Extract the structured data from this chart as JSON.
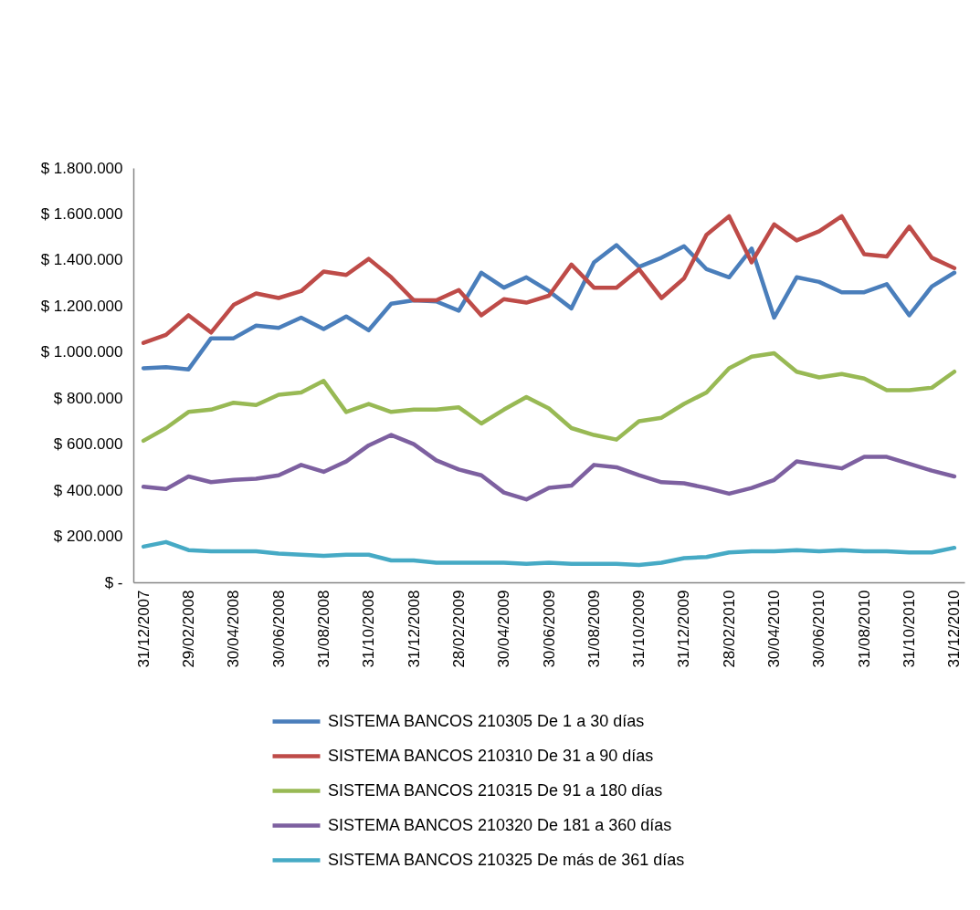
{
  "chart_data": {
    "type": "line",
    "categories": [
      "31/12/2007",
      null,
      "29/02/2008",
      null,
      "30/04/2008",
      null,
      "30/06/2008",
      null,
      "31/08/2008",
      null,
      "31/10/2008",
      null,
      "31/12/2008",
      null,
      "28/02/2009",
      null,
      "30/04/2009",
      null,
      "30/06/2009",
      null,
      "31/08/2009",
      null,
      "31/10/2009",
      null,
      "31/12/2009",
      null,
      "28/02/2010",
      null,
      "30/04/2010",
      null,
      "30/06/2010",
      null,
      "31/08/2010",
      null,
      "31/10/2010",
      null,
      "31/12/2010"
    ],
    "series": [
      {
        "name": "SISTEMA BANCOS 210305 De 1 a 30 días",
        "color": "#4a7ebb",
        "values": [
          930000,
          935000,
          925000,
          1060000,
          1060000,
          1115000,
          1105000,
          1150000,
          1100000,
          1155000,
          1095000,
          1210000,
          1225000,
          1220000,
          1180000,
          1345000,
          1280000,
          1325000,
          1265000,
          1190000,
          1390000,
          1465000,
          1370000,
          1410000,
          1460000,
          1360000,
          1325000,
          1450000,
          1150000,
          1325000,
          1305000,
          1260000,
          1260000,
          1295000,
          1160000,
          1285000,
          1345000
        ]
      },
      {
        "name": "SISTEMA BANCOS 210310 De 31 a 90 días",
        "color": "#be4b48",
        "values": [
          1040000,
          1075000,
          1160000,
          1085000,
          1205000,
          1255000,
          1235000,
          1265000,
          1350000,
          1335000,
          1405000,
          1325000,
          1225000,
          1225000,
          1270000,
          1160000,
          1230000,
          1215000,
          1245000,
          1380000,
          1280000,
          1280000,
          1360000,
          1235000,
          1320000,
          1510000,
          1590000,
          1390000,
          1555000,
          1485000,
          1525000,
          1590000,
          1425000,
          1415000,
          1545000,
          1410000,
          1365000
        ]
      },
      {
        "name": "SISTEMA BANCOS 210315 De 91 a 180 días",
        "color": "#98b954",
        "values": [
          615000,
          670000,
          740000,
          750000,
          780000,
          770000,
          815000,
          825000,
          875000,
          740000,
          775000,
          740000,
          750000,
          750000,
          760000,
          690000,
          750000,
          805000,
          755000,
          670000,
          640000,
          620000,
          700000,
          715000,
          775000,
          825000,
          930000,
          980000,
          995000,
          915000,
          890000,
          905000,
          885000,
          835000,
          835000,
          845000,
          915000
        ]
      },
      {
        "name": "SISTEMA BANCOS 210320 De 181 a 360 días",
        "color": "#7d60a0",
        "values": [
          415000,
          405000,
          460000,
          435000,
          445000,
          450000,
          465000,
          510000,
          480000,
          525000,
          595000,
          640000,
          600000,
          530000,
          490000,
          465000,
          390000,
          360000,
          410000,
          420000,
          510000,
          500000,
          465000,
          435000,
          430000,
          410000,
          385000,
          410000,
          445000,
          525000,
          510000,
          495000,
          545000,
          545000,
          515000,
          485000,
          460000
        ]
      },
      {
        "name": "SISTEMA BANCOS 210325 De más de 361 días",
        "color": "#46aac5",
        "values": [
          155000,
          175000,
          140000,
          135000,
          135000,
          135000,
          125000,
          120000,
          115000,
          120000,
          120000,
          95000,
          95000,
          85000,
          85000,
          85000,
          85000,
          80000,
          85000,
          80000,
          80000,
          80000,
          75000,
          85000,
          105000,
          110000,
          130000,
          135000,
          135000,
          140000,
          135000,
          140000,
          135000,
          135000,
          130000,
          130000,
          150000
        ]
      }
    ],
    "ylim": [
      0,
      1800000
    ],
    "yticks": [
      {
        "value": 0,
        "label": "$ -"
      },
      {
        "value": 200000,
        "label": "$ 200.000"
      },
      {
        "value": 400000,
        "label": "$ 400.000"
      },
      {
        "value": 600000,
        "label": "$ 600.000"
      },
      {
        "value": 800000,
        "label": "$ 800.000"
      },
      {
        "value": 1000000,
        "label": "$ 1.000.000"
      },
      {
        "value": 1200000,
        "label": "$ 1.200.000"
      },
      {
        "value": 1400000,
        "label": "$ 1.400.000"
      },
      {
        "value": 1600000,
        "label": "$ 1.600.000"
      },
      {
        "value": 1800000,
        "label": "$ 1.800.000"
      }
    ],
    "legend": "bottom"
  }
}
